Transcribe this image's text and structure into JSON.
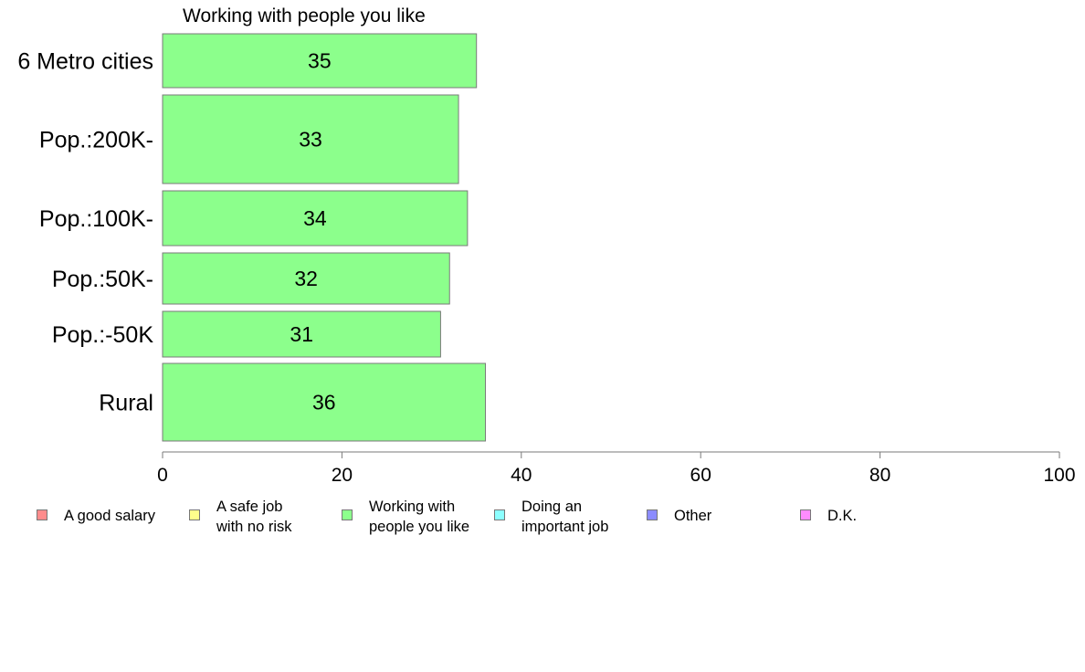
{
  "chart_data": {
    "type": "bar",
    "orientation": "horizontal",
    "title": "Working with people you like",
    "xlabel": "",
    "ylabel": "",
    "xlim": [
      0,
      100
    ],
    "x_ticks": [
      0,
      20,
      40,
      60,
      80,
      100
    ],
    "grid": false,
    "categories": [
      "6 Metro cities",
      "Pop.:200K-",
      "Pop.:100K-",
      "Pop.:50K-",
      "Pop.:-50K",
      "Rural"
    ],
    "series": [
      {
        "name": "Working with people you like",
        "color": "#8cff8c",
        "values": [
          35,
          33,
          34,
          32,
          31,
          36
        ]
      }
    ],
    "data_labels": [
      "35",
      "33",
      "34",
      "32",
      "31",
      "36"
    ],
    "legend_position": "bottom",
    "legend": [
      {
        "label": "A good salary",
        "color": "#ff8c8c"
      },
      {
        "label": "A safe job\nwith no risk",
        "color": "#ffff8c"
      },
      {
        "label": "Working with\npeople you like",
        "color": "#8cff8c"
      },
      {
        "label": "Doing an\nimportant job",
        "color": "#8cffff"
      },
      {
        "label": "Other",
        "color": "#8c8cff"
      },
      {
        "label": "D.K.",
        "color": "#ff8cff"
      }
    ]
  }
}
